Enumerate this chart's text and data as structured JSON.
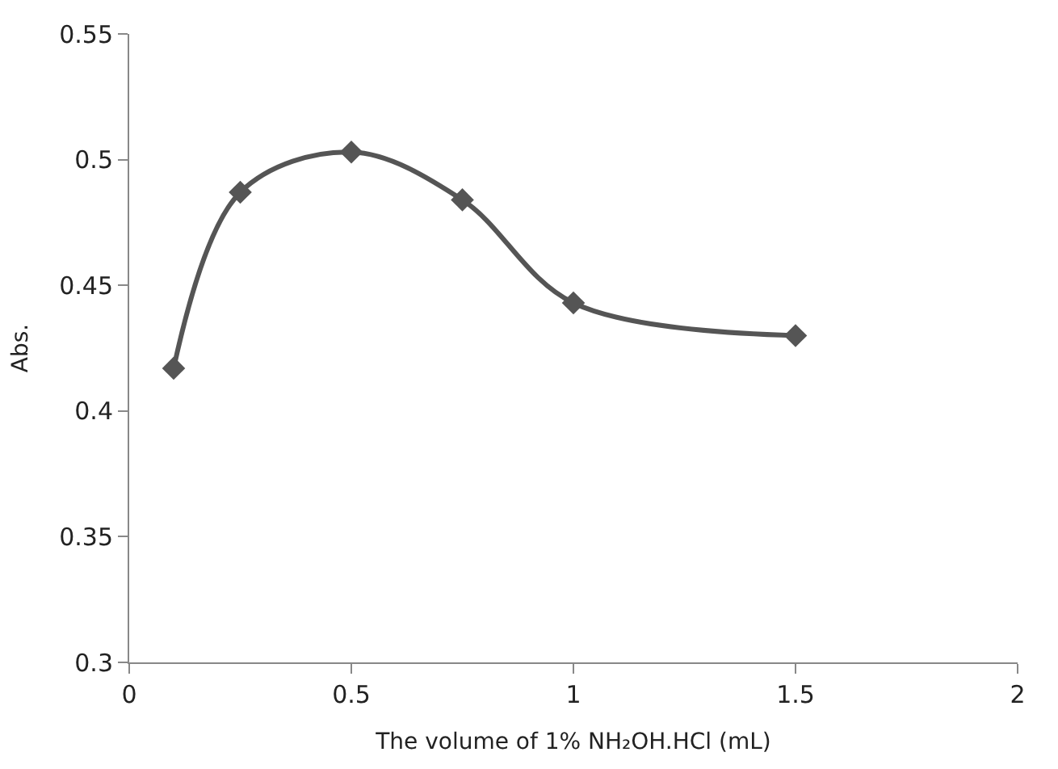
{
  "chart_data": {
    "type": "line",
    "xlabel": "The volume of 1% NH₂OH.HCl (mL)",
    "ylabel": "Abs.",
    "x": [
      0.1,
      0.25,
      0.5,
      0.75,
      1,
      1.5
    ],
    "series": [
      {
        "color": "#555555",
        "values": [
          0.417,
          0.487,
          0.503,
          0.484,
          0.443,
          0.43
        ]
      }
    ],
    "xlim": [
      0,
      2
    ],
    "xticks": [
      0,
      0.5,
      1,
      1.5,
      2
    ],
    "ylim": [
      0.3,
      0.55
    ],
    "yticks": [
      0.3,
      0.35,
      0.4,
      0.45,
      0.5,
      0.55
    ],
    "marker": "diamond",
    "line_style": "solid"
  }
}
